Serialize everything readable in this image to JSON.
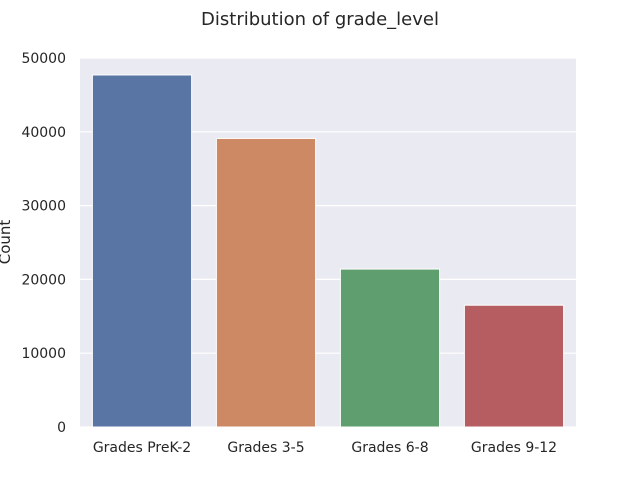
{
  "chart_data": {
    "type": "bar",
    "title": "Distribution of grade_level",
    "xlabel": "",
    "ylabel": "Count",
    "categories": [
      "Grades PreK-2",
      "Grades 3-5",
      "Grades 6-8",
      "Grades 9-12"
    ],
    "values": [
      47700,
      39100,
      21400,
      16500
    ],
    "ylim": [
      0,
      50000
    ],
    "yticks": [
      0,
      10000,
      20000,
      30000,
      40000,
      50000
    ],
    "grid": true,
    "colors": [
      "#5975a4",
      "#cc8963",
      "#5f9e6e",
      "#b55d60"
    ],
    "background": "#eaeaf2"
  }
}
